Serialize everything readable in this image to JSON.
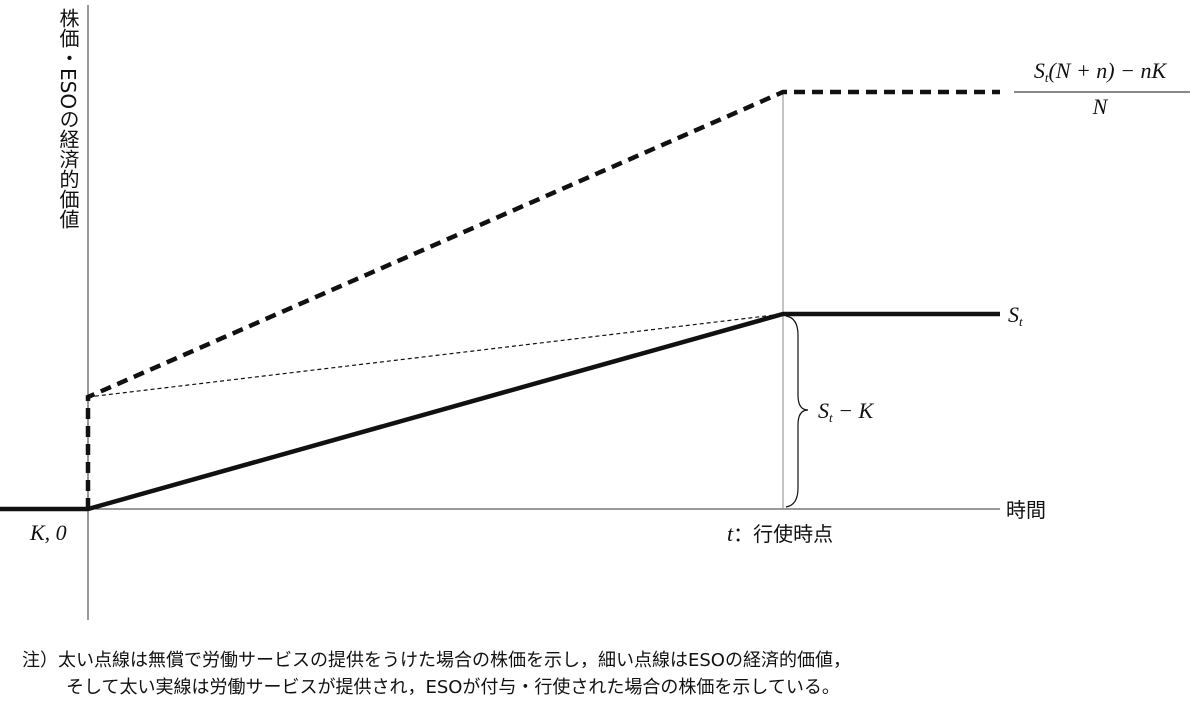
{
  "y_axis_label": "株価・ESOの経済的価値",
  "x_axis_label": "時間",
  "origin_label": "K, 0",
  "exercise_label": {
    "symbol": "t",
    "text": "：行使時点"
  },
  "stock_price_label": {
    "symbol": "S",
    "subscript": "t"
  },
  "eso_value_label": {
    "symbol": "S",
    "subscript": "t",
    "rest": " − K"
  },
  "formula": {
    "symbol": "S",
    "subscript": "t",
    "numerator_rest": "(N + n) − nK",
    "denominator": "N"
  },
  "note": [
    "注）太い点線は無償で労働サービスの提供をうけた場合の株価を示し，細い点線はESOの経済的価値，",
    "そして太い実線は労働サービスが提供され，ESOが付与・行使された場合の株価を示している。"
  ]
}
